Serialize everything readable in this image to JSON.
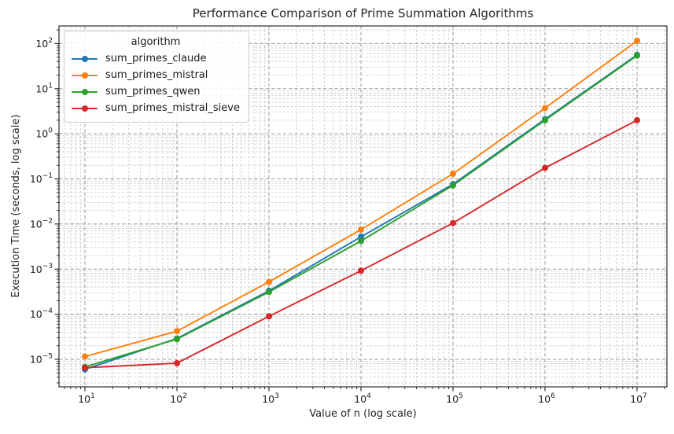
{
  "chart_data": {
    "type": "line",
    "title": "Performance Comparison of Prime Summation Algorithms",
    "xlabel": "Value of n (log scale)",
    "ylabel": "Execution Time (seconds, log scale)",
    "legend_title": "algorithm",
    "legend_position": "upper left",
    "x_scale": "log",
    "y_scale": "log",
    "grid": "major and minor, dashed gray",
    "x": [
      10,
      100,
      1000,
      10000,
      100000,
      1000000,
      10000000
    ],
    "series": [
      {
        "name": "sum_primes_claude",
        "color": "#1f77b4",
        "values": [
          6e-06,
          2.9e-05,
          0.00033,
          0.0052,
          0.076,
          2.1,
          56
        ]
      },
      {
        "name": "sum_primes_mistral",
        "color": "#ff7f0e",
        "values": [
          1.15e-05,
          4.2e-05,
          0.00052,
          0.0075,
          0.13,
          3.7,
          115
        ]
      },
      {
        "name": "sum_primes_qwen",
        "color": "#2ca02c",
        "values": [
          6.8e-06,
          2.8e-05,
          0.00031,
          0.0042,
          0.072,
          2.0,
          54
        ]
      },
      {
        "name": "sum_primes_mistral_sieve",
        "color": "#d62728",
        "values": [
          6.5e-06,
          8.2e-06,
          9e-05,
          0.00092,
          0.0105,
          0.175,
          2.0
        ]
      }
    ],
    "x_tick_exponents": [
      1,
      2,
      3,
      4,
      5,
      6,
      7
    ],
    "y_tick_exponents": [
      2,
      1,
      0,
      -1,
      -2,
      -3,
      -4,
      -5
    ],
    "x_log_range": [
      0.718,
      7.325
    ],
    "y_log_range": [
      -5.61,
      2.39
    ],
    "colors": {
      "major_grid": "#999999",
      "minor_grid": "#c4c4c4",
      "spine": "#2b2b2b",
      "tick": "#1a1a1a"
    }
  }
}
